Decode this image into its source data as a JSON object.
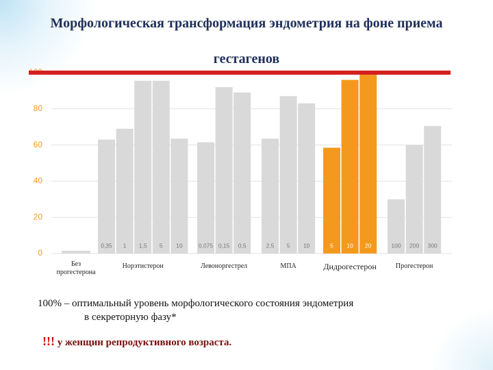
{
  "chart_data": {
    "type": "bar",
    "title": "Морфологическая трансформация эндометрия на фоне приема гестагенов",
    "ylim": [
      0,
      100
    ],
    "yticks": [
      0,
      20,
      40,
      60,
      80,
      100
    ],
    "grid": true,
    "reference_line": {
      "value": 100,
      "color": "#d42020"
    },
    "series": [
      {
        "name": "Без прогестерона",
        "color": "#d9d9d9",
        "categories": [
          null
        ],
        "values": [
          1.5
        ]
      },
      {
        "name": "Норэтистерон",
        "color": "#d9d9d9",
        "categories": [
          "0,35",
          "1",
          "1,5",
          "5",
          "10"
        ],
        "values": [
          63,
          69,
          95.5,
          95.5,
          63.5
        ]
      },
      {
        "name": "Левоноргестрел",
        "color": "#d9d9d9",
        "categories": [
          "0,075",
          "0,15",
          "0,5"
        ],
        "values": [
          61.5,
          92,
          89
        ]
      },
      {
        "name": "МПА",
        "color": "#d9d9d9",
        "categories": [
          "2,5",
          "5",
          "10"
        ],
        "values": [
          63.5,
          87,
          83
        ]
      },
      {
        "name": "Дидрогестерон",
        "color": "#f39a1e",
        "categories": [
          "5",
          "10",
          "20"
        ],
        "values": [
          58.5,
          96,
          99
        ]
      },
      {
        "name": "Прогестерон",
        "color": "#d9d9d9",
        "categories": [
          "100",
          "200",
          "300"
        ],
        "values": [
          30,
          60,
          70.5
        ]
      }
    ]
  },
  "notes": {
    "line1": "100%  – оптимальный уровень морфологического состояния эндометрия",
    "line2": "в секреторную фазу*",
    "mark": "!!!",
    "text": "у женщин репродуктивного возраста."
  }
}
